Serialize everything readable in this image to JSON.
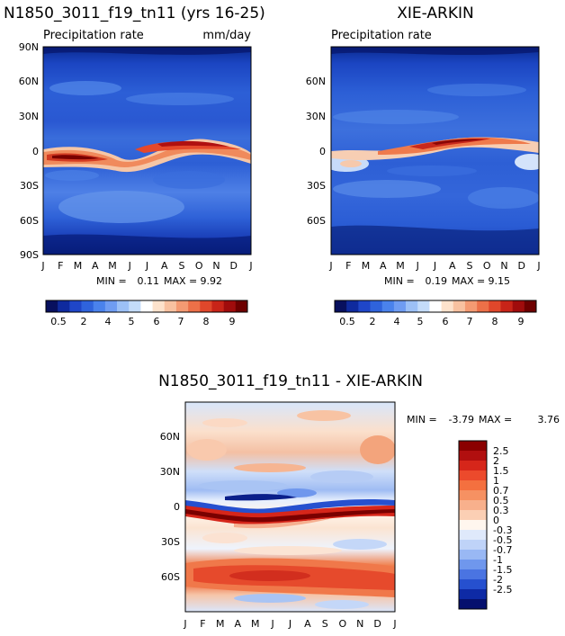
{
  "chart_data": [
    {
      "type": "heatmap",
      "title": "N1850_3011_f19_tn11 (yrs 16-25)",
      "subtitle_left": "Precipitation rate",
      "subtitle_right": "mm/day",
      "x_ticks": [
        "J",
        "F",
        "M",
        "A",
        "M",
        "J",
        "J",
        "A",
        "S",
        "O",
        "N",
        "D",
        "J"
      ],
      "y_ticks": [
        "90N",
        "60N",
        "30N",
        "0",
        "30S",
        "60S",
        "90S"
      ],
      "ylim": [
        -90,
        90
      ],
      "stats": {
        "min_label": "MIN =",
        "min": "0.11",
        "max_label": "MAX =",
        "max": "9.92"
      },
      "colorbar": {
        "levels": [
          0.2,
          0.5,
          1,
          1.5,
          2,
          3,
          4,
          4.5,
          5,
          5.5,
          6,
          6.5,
          7,
          7.5,
          8,
          9
        ],
        "labels": [
          "0.5",
          "2",
          "4",
          "5",
          "6",
          "7",
          "8",
          "9"
        ],
        "colors": [
          "#08105e",
          "#0f2a9e",
          "#1f46c8",
          "#2f63dc",
          "#4a82ec",
          "#6f9cf2",
          "#9cc0f6",
          "#c4dcfa",
          "#ffffff",
          "#fde2cc",
          "#f8c1a0",
          "#f49a72",
          "#ec7048",
          "#e0472b",
          "#c82418",
          "#a00c0c",
          "#6e0000"
        ]
      }
    },
    {
      "type": "heatmap",
      "title": "XIE-ARKIN",
      "subtitle_left": "Precipitation rate",
      "x_ticks": [
        "J",
        "F",
        "M",
        "A",
        "M",
        "J",
        "J",
        "A",
        "S",
        "O",
        "N",
        "D",
        "J"
      ],
      "y_ticks": [
        "60N",
        "30N",
        "0",
        "30S",
        "60S"
      ],
      "ylim": [
        -90,
        90
      ],
      "stats": {
        "min_label": "MIN =",
        "min": "0.19",
        "max_label": "MAX =",
        "max": "9.15"
      },
      "colorbar": {
        "labels": [
          "0.5",
          "2",
          "4",
          "5",
          "6",
          "7",
          "8",
          "9"
        ]
      }
    },
    {
      "type": "heatmap",
      "title": "N1850_3011_f19_tn11 - XIE-ARKIN",
      "x_ticks": [
        "J",
        "F",
        "M",
        "A",
        "M",
        "J",
        "J",
        "A",
        "S",
        "O",
        "N",
        "D",
        "J"
      ],
      "y_ticks": [
        "60N",
        "30N",
        "0",
        "30S",
        "60S"
      ],
      "ylim": [
        -90,
        90
      ],
      "stats": {
        "min_label": "MIN =",
        "min": "-3.79",
        "max_label": "MAX =",
        "max": "3.76"
      },
      "colorbar": {
        "labels": [
          "2.5",
          "2",
          "1.5",
          "1",
          "0.7",
          "0.5",
          "0.3",
          "0",
          "-0.3",
          "-0.5",
          "-0.7",
          "-1",
          "-1.5",
          "-2",
          "-2.5"
        ],
        "colors": [
          "#8a0000",
          "#b10f0f",
          "#d6261a",
          "#ec4a2c",
          "#f4703f",
          "#f69162",
          "#f8b08c",
          "#fbcfb4",
          "#fff6ee",
          "#dfe9fb",
          "#bfd3f8",
          "#99b8f4",
          "#6f97ed",
          "#4a74e2",
          "#2650cf",
          "#0e2aa5",
          "#05106e"
        ]
      }
    }
  ]
}
